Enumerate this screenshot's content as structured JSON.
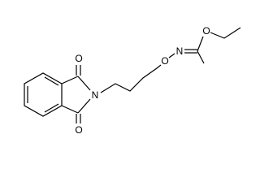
{
  "atoms": [
    {
      "label": "O"
    },
    {
      "label": "O"
    },
    {
      "label": "N"
    },
    {
      "label": "O"
    },
    {
      "label": "N"
    },
    {
      "label": "O"
    }
  ]
}
